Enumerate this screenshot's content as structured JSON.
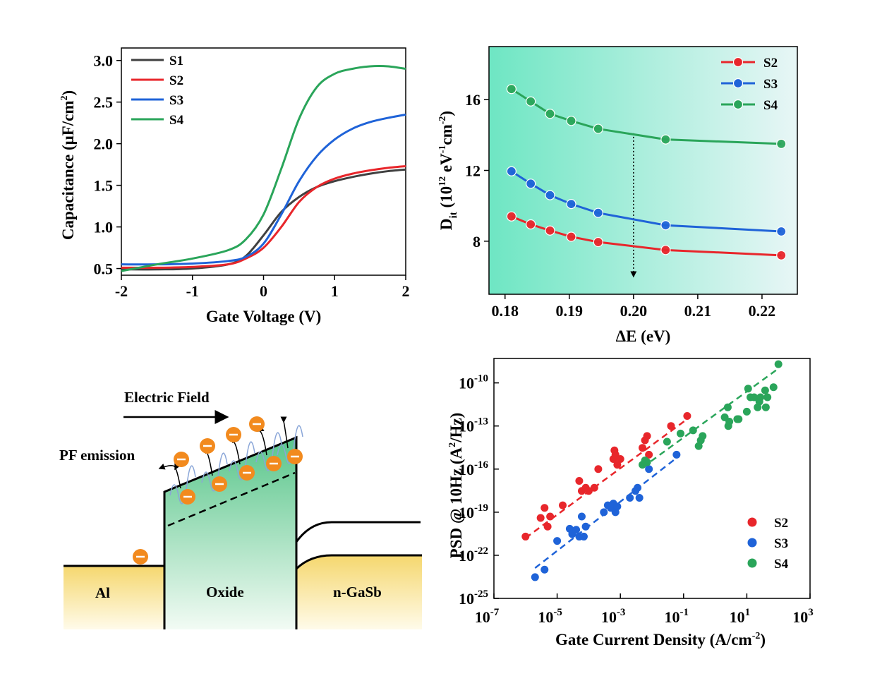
{
  "colors": {
    "S1": "#404040",
    "S2": "#e8262b",
    "S3": "#1f63d8",
    "S4": "#2aa55a"
  },
  "chart_data": [
    {
      "id": "cv",
      "type": "line",
      "xlabel": "Gate Voltage (V)",
      "ylabel": "Capacitance (μF/cm²)",
      "ylabel_parts": [
        "Capacitance (μF/cm",
        "2",
        ")"
      ],
      "xlim": [
        -2,
        2
      ],
      "ylim": [
        0.42,
        3.15
      ],
      "xticks": [
        -2,
        -1,
        0,
        1,
        2
      ],
      "xtick_labels": [
        "-2",
        "-1",
        "0",
        "1",
        "2"
      ],
      "yticks": [
        0.5,
        1.0,
        1.5,
        2.0,
        2.5,
        3.0
      ],
      "ytick_labels": [
        "0.5",
        "1.0",
        "1.5",
        "2.0",
        "2.5",
        "3.0"
      ],
      "legend_position": "top-left",
      "x": [
        -2.0,
        -1.5,
        -1.0,
        -0.5,
        -0.25,
        0.0,
        0.25,
        0.5,
        0.75,
        1.0,
        1.25,
        1.5,
        1.75,
        2.0
      ],
      "series": [
        {
          "name": "S1",
          "values": [
            0.49,
            0.49,
            0.5,
            0.55,
            0.65,
            0.9,
            1.18,
            1.36,
            1.48,
            1.55,
            1.6,
            1.64,
            1.67,
            1.69
          ]
        },
        {
          "name": "S2",
          "values": [
            0.51,
            0.51,
            0.52,
            0.55,
            0.62,
            0.75,
            1.0,
            1.3,
            1.48,
            1.58,
            1.64,
            1.68,
            1.71,
            1.73
          ]
        },
        {
          "name": "S3",
          "values": [
            0.55,
            0.55,
            0.56,
            0.59,
            0.64,
            0.8,
            1.15,
            1.55,
            1.85,
            2.05,
            2.18,
            2.26,
            2.31,
            2.35
          ]
        },
        {
          "name": "S4",
          "values": [
            0.47,
            0.55,
            0.62,
            0.72,
            0.85,
            1.15,
            1.7,
            2.3,
            2.68,
            2.84,
            2.9,
            2.93,
            2.93,
            2.9
          ]
        }
      ]
    },
    {
      "id": "dit",
      "type": "line",
      "xlabel": "ΔE (eV)",
      "ylabel_parts": [
        "D",
        "it",
        " (10",
        "12",
        " eV",
        "-1",
        "cm",
        "-2",
        ")"
      ],
      "xlim": [
        0.1775,
        0.2255
      ],
      "ylim": [
        5.0,
        19.0
      ],
      "xticks": [
        0.18,
        0.19,
        0.2,
        0.21,
        0.22
      ],
      "xtick_labels": [
        "0.18",
        "0.19",
        "0.20",
        "0.21",
        "0.22"
      ],
      "yticks": [
        8,
        12,
        16
      ],
      "ytick_labels": [
        "8",
        "12",
        "16"
      ],
      "legend_position": "top-right",
      "gradient": [
        "#6ee6c3",
        "#e8f6f6"
      ],
      "arrow_x": 0.2,
      "arrow_range": [
        14.1,
        6.0
      ],
      "x": [
        0.181,
        0.184,
        0.187,
        0.1903,
        0.1945,
        0.205,
        0.223
      ],
      "series": [
        {
          "name": "S2",
          "values": [
            9.4,
            8.95,
            8.6,
            8.25,
            7.95,
            7.5,
            7.2
          ]
        },
        {
          "name": "S3",
          "values": [
            11.95,
            11.25,
            10.6,
            10.1,
            9.6,
            8.9,
            8.55
          ]
        },
        {
          "name": "S4",
          "values": [
            16.6,
            15.9,
            15.2,
            14.8,
            14.35,
            13.75,
            13.5
          ]
        }
      ]
    },
    {
      "id": "psd",
      "type": "scatter",
      "xlabel": "Gate Current Density (A/cm⁻²)",
      "xlabel_text": "Gate Current Density (A/cm",
      "xlabel_sup": "-2",
      "xlabel_end": ")",
      "ylabel_parts": [
        "PSD @ 10Hz (A",
        "2",
        "/Hz)"
      ],
      "log_scale": true,
      "xlim_log10": [
        -7,
        3
      ],
      "ylim_log10": [
        -25,
        -8.3
      ],
      "xtick_exps": [
        "-7",
        "-5",
        "-3",
        "-1",
        "1",
        "3"
      ],
      "ytick_exps": [
        "-10",
        "-13",
        "-16",
        "-19",
        "-22",
        "-25"
      ],
      "tick_base": "10",
      "legend_position": "bottom-right",
      "series": [
        {
          "name": "S2",
          "points": [
            [
              1e-06,
              2e-21
            ],
            [
              3e-06,
              4e-20
            ],
            [
              4e-06,
              2e-19
            ],
            [
              5e-06,
              1e-20
            ],
            [
              6e-06,
              5e-20
            ],
            [
              1.5e-05,
              3e-19
            ],
            [
              5e-05,
              1.5e-17
            ],
            [
              6e-05,
              3e-18
            ],
            [
              8e-05,
              5e-18
            ],
            [
              0.0001,
              3e-18
            ],
            [
              0.00015,
              5e-18
            ],
            [
              0.0002,
              1e-16
            ],
            [
              0.0006,
              5e-16
            ],
            [
              0.00065,
              2e-15
            ],
            [
              0.0007,
              1e-15
            ],
            [
              0.0008,
              2e-16
            ],
            [
              0.001,
              5e-16
            ],
            [
              0.005,
              3e-15
            ],
            [
              0.006,
              1e-14
            ],
            [
              0.007,
              2e-14
            ],
            [
              0.008,
              1e-15
            ],
            [
              0.04,
              1e-13
            ],
            [
              0.13,
              5e-13
            ]
          ],
          "fit": [
            [
              1e-06,
              1.6e-21
            ],
            [
              0.13,
              3e-13
            ]
          ]
        },
        {
          "name": "S3",
          "points": [
            [
              2e-06,
              3e-24
            ],
            [
              4e-06,
              1e-23
            ],
            [
              1e-05,
              1e-21
            ],
            [
              2.5e-05,
              7e-21
            ],
            [
              3e-05,
              3e-21
            ],
            [
              4e-05,
              6e-21
            ],
            [
              5e-05,
              2e-21
            ],
            [
              6e-05,
              5e-20
            ],
            [
              7e-05,
              2e-21
            ],
            [
              8e-05,
              1e-20
            ],
            [
              0.0003,
              1e-19
            ],
            [
              0.0004,
              3e-19
            ],
            [
              0.0005,
              2e-19
            ],
            [
              0.0006,
              4e-19
            ],
            [
              0.0007,
              1e-19
            ],
            [
              0.0008,
              2.5e-19
            ],
            [
              0.002,
              1e-18
            ],
            [
              0.003,
              3e-18
            ],
            [
              0.0035,
              5e-18
            ],
            [
              0.004,
              1e-18
            ],
            [
              0.008,
              1e-16
            ],
            [
              0.06,
              1e-15
            ]
          ],
          "fit": [
            [
              2e-06,
              1.3e-23
            ],
            [
              0.06,
              6e-16
            ]
          ]
        },
        {
          "name": "S4",
          "points": [
            [
              0.005,
              2e-16
            ],
            [
              0.006,
              4e-16
            ],
            [
              0.007,
              3e-16
            ],
            [
              0.03,
              8e-15
            ],
            [
              0.08,
              3e-14
            ],
            [
              0.2,
              5e-14
            ],
            [
              0.3,
              4e-15
            ],
            [
              0.35,
              1e-14
            ],
            [
              0.4,
              2e-14
            ],
            [
              2,
              4e-13
            ],
            [
              2.5,
              2e-12
            ],
            [
              2.6,
              1e-13
            ],
            [
              2.8,
              2e-13
            ],
            [
              5,
              3e-13
            ],
            [
              5.5,
              3e-13
            ],
            [
              10,
              1e-12
            ],
            [
              11,
              4e-11
            ],
            [
              13,
              1e-11
            ],
            [
              17,
              1e-11
            ],
            [
              22,
              2e-12
            ],
            [
              25,
              5e-12
            ],
            [
              27,
              1e-11
            ],
            [
              38,
              3e-11
            ],
            [
              40,
              2e-12
            ],
            [
              45,
              1e-11
            ],
            [
              70,
              5e-11
            ],
            [
              100,
              2e-09
            ]
          ],
          "fit": [
            [
              0.005,
              1.3e-16
            ],
            [
              100,
              1e-09
            ]
          ]
        }
      ]
    }
  ],
  "diagram": {
    "field_label": "Electric Field",
    "emission_label": "PF emission",
    "al_label": "Al",
    "oxide_label": "Oxide",
    "gasb_label": "n-GaSb",
    "colors": {
      "metal": "#f7e08a",
      "oxide": "#5ec98f",
      "electron": "#f28a1e"
    }
  }
}
